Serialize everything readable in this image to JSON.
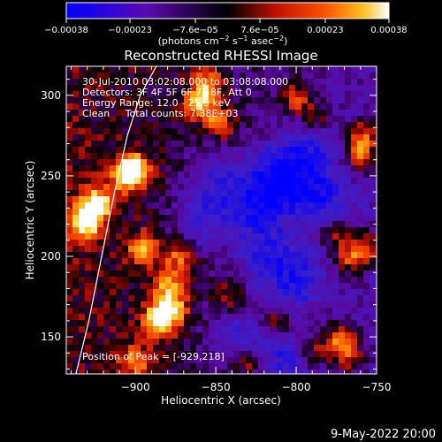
{
  "chart_data": {
    "type": "heatmap",
    "title": "Reconstructed RHESSI Image",
    "xlabel": "Heliocentric X (arcsec)",
    "ylabel": "Heliocentric Y (arcsec)",
    "xlim": [
      -943,
      -750
    ],
    "ylim": [
      127,
      318
    ],
    "xticks": [
      -900,
      -850,
      -800,
      -750
    ],
    "yticks": [
      150,
      200,
      250,
      300
    ],
    "xtick_labels": [
      "−900",
      "−850",
      "−800",
      "−750"
    ],
    "ytick_labels": [
      "150",
      "200",
      "250",
      "300"
    ],
    "colorbar": {
      "min": -0.00038,
      "max": 0.00038,
      "tick_values": [
        -0.00038,
        -0.00023,
        -7.6e-05,
        7.6e-05,
        0.00023,
        0.00038
      ],
      "tick_labels": [
        "−0.00038",
        "−0.00023",
        "−7.6e−05",
        "7.6e−05",
        "0.00023",
        "0.00038"
      ],
      "units_prefix": "(photons cm",
      "units_exp1": "−2",
      "units_mid": " s",
      "units_exp2": "−1",
      "units_mid2": " asec",
      "units_exp3": "−2",
      "units_suffix": ")"
    },
    "info_lines": [
      "30-Jul-2010 03:02:08.000 to 03:08:08.000",
      "Detectors: 3F 4F 5F 6F 7F 8F, Att 0",
      "Energy Range: 12.0 - 25.0 keV",
      "Clean     Total counts: 7.38E+03"
    ],
    "peak_label": "Position of Peak = [-929,218]",
    "peak": [
      -929,
      218
    ],
    "limb_points": [
      [
        -937,
        127
      ],
      [
        -929,
        160
      ],
      [
        -921,
        200
      ],
      [
        -913,
        240
      ],
      [
        -905,
        275
      ],
      [
        -897,
        300
      ],
      [
        -887,
        318
      ]
    ],
    "hot_regions": [
      {
        "x": -931,
        "y": 221,
        "value": 1.0
      },
      {
        "x": -924,
        "y": 233,
        "value": 0.95
      },
      {
        "x": -905,
        "y": 250,
        "value": 0.8
      },
      {
        "x": -901,
        "y": 255,
        "value": 0.75
      },
      {
        "x": -885,
        "y": 160,
        "value": 0.95
      },
      {
        "x": -878,
        "y": 168,
        "value": 0.85
      },
      {
        "x": -895,
        "y": 205,
        "value": 0.7
      },
      {
        "x": -872,
        "y": 200,
        "value": 0.6
      },
      {
        "x": -880,
        "y": 183,
        "value": 0.65
      },
      {
        "x": -900,
        "y": 135,
        "value": 0.6
      },
      {
        "x": -860,
        "y": 295,
        "value": 0.75
      },
      {
        "x": -855,
        "y": 308,
        "value": 0.7
      },
      {
        "x": -848,
        "y": 283,
        "value": 0.6
      },
      {
        "x": -800,
        "y": 298,
        "value": 0.6
      },
      {
        "x": -788,
        "y": 285,
        "value": 0.55
      },
      {
        "x": -760,
        "y": 262,
        "value": 0.75
      },
      {
        "x": -758,
        "y": 275,
        "value": 0.7
      },
      {
        "x": -756,
        "y": 205,
        "value": 0.75
      },
      {
        "x": -767,
        "y": 198,
        "value": 0.6
      },
      {
        "x": -775,
        "y": 215,
        "value": 0.55
      },
      {
        "x": -773,
        "y": 150,
        "value": 0.7
      },
      {
        "x": -768,
        "y": 138,
        "value": 0.65
      },
      {
        "x": -790,
        "y": 140,
        "value": 0.55
      },
      {
        "x": -830,
        "y": 135,
        "value": 0.55
      },
      {
        "x": -812,
        "y": 160,
        "value": 0.5
      },
      {
        "x": -840,
        "y": 175,
        "value": 0.45
      }
    ],
    "cold_regions": [
      {
        "x": -810,
        "y": 250,
        "value": -0.8
      },
      {
        "x": -825,
        "y": 230,
        "value": -0.6
      },
      {
        "x": -785,
        "y": 235,
        "value": -0.6
      },
      {
        "x": -850,
        "y": 245,
        "value": -0.5
      },
      {
        "x": -820,
        "y": 200,
        "value": -0.5
      },
      {
        "x": -800,
        "y": 185,
        "value": -0.55
      },
      {
        "x": -835,
        "y": 150,
        "value": -0.5
      },
      {
        "x": -860,
        "y": 220,
        "value": -0.45
      },
      {
        "x": -790,
        "y": 270,
        "value": -0.45
      },
      {
        "x": -805,
        "y": 135,
        "value": -0.5
      }
    ],
    "grid": false
  },
  "footer": {
    "date": "9-May-2022 20:00"
  }
}
